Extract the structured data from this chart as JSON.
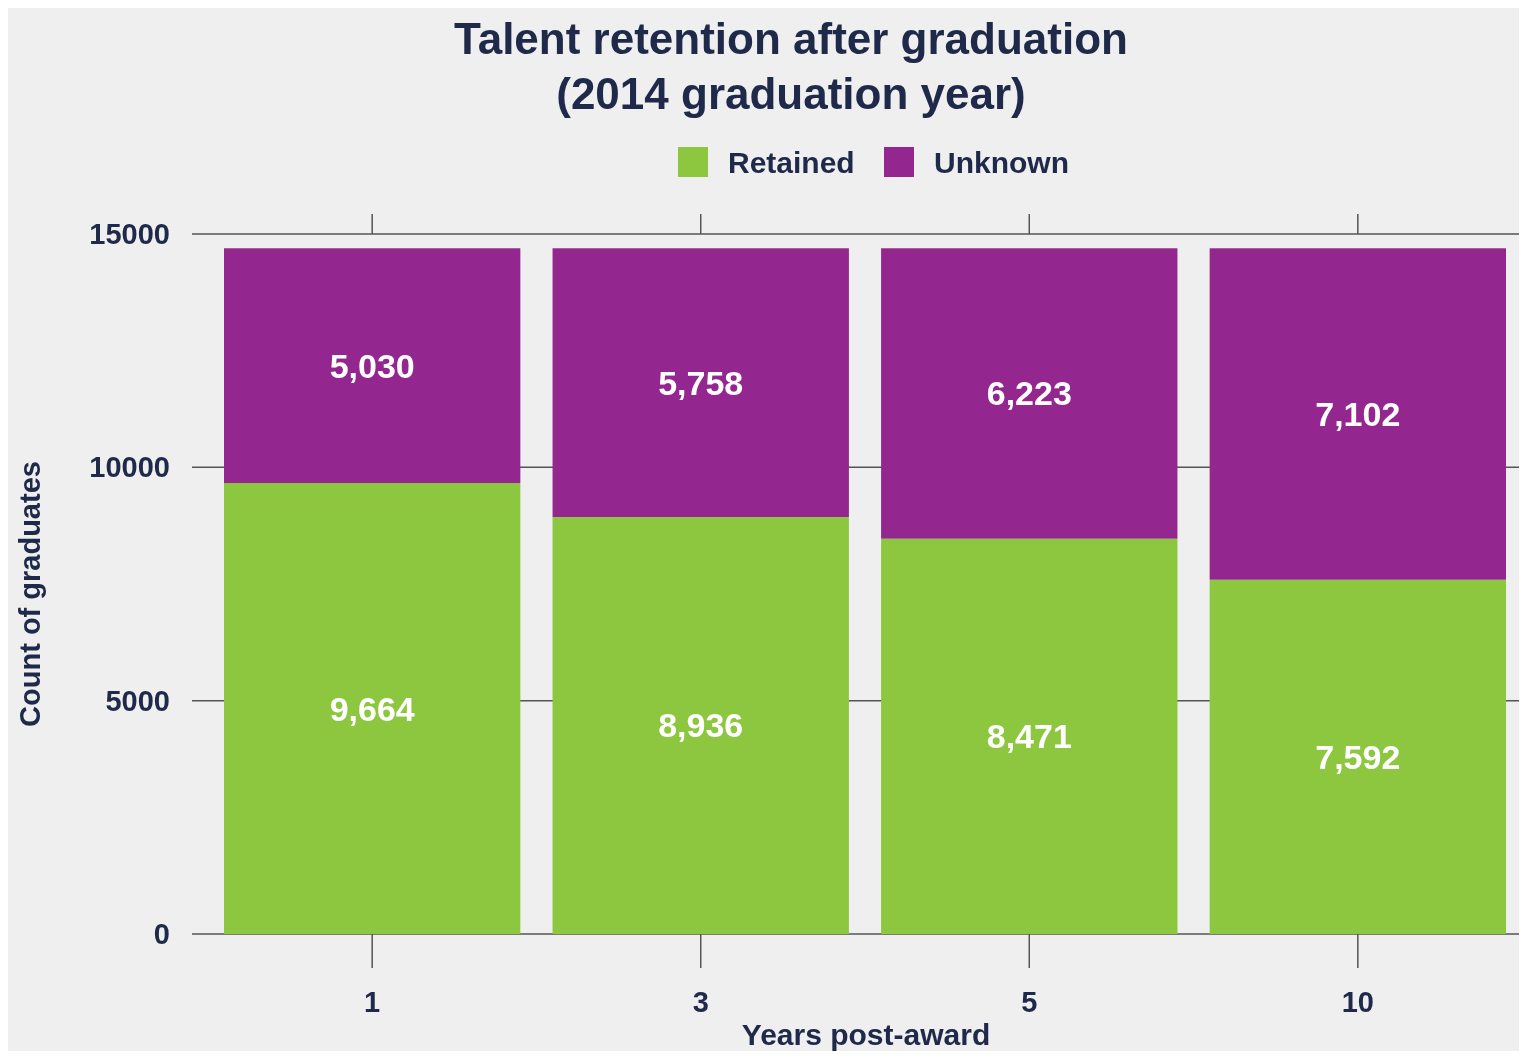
{
  "chart_data": {
    "type": "bar",
    "title": "Talent retention after graduation\n(2014 graduation year)",
    "xlabel": "Years post-award",
    "ylabel": "Count of graduates",
    "categories": [
      "1",
      "3",
      "5",
      "10"
    ],
    "stacked": true,
    "series": [
      {
        "name": "Retained",
        "color": "#8dc63f",
        "values": [
          9664,
          8936,
          8471,
          7592
        ],
        "value_labels": [
          "9,664",
          "8,936",
          "8,471",
          "7,592"
        ]
      },
      {
        "name": "Unknown",
        "color": "#93268f",
        "values": [
          5030,
          5758,
          6223,
          7102
        ],
        "value_labels": [
          "5,030",
          "5,758",
          "6,223",
          "7,102"
        ]
      }
    ],
    "ylim": [
      0,
      15000
    ],
    "yticks": [
      0,
      5000,
      10000,
      15000
    ],
    "grid": "y",
    "legend": "top"
  }
}
